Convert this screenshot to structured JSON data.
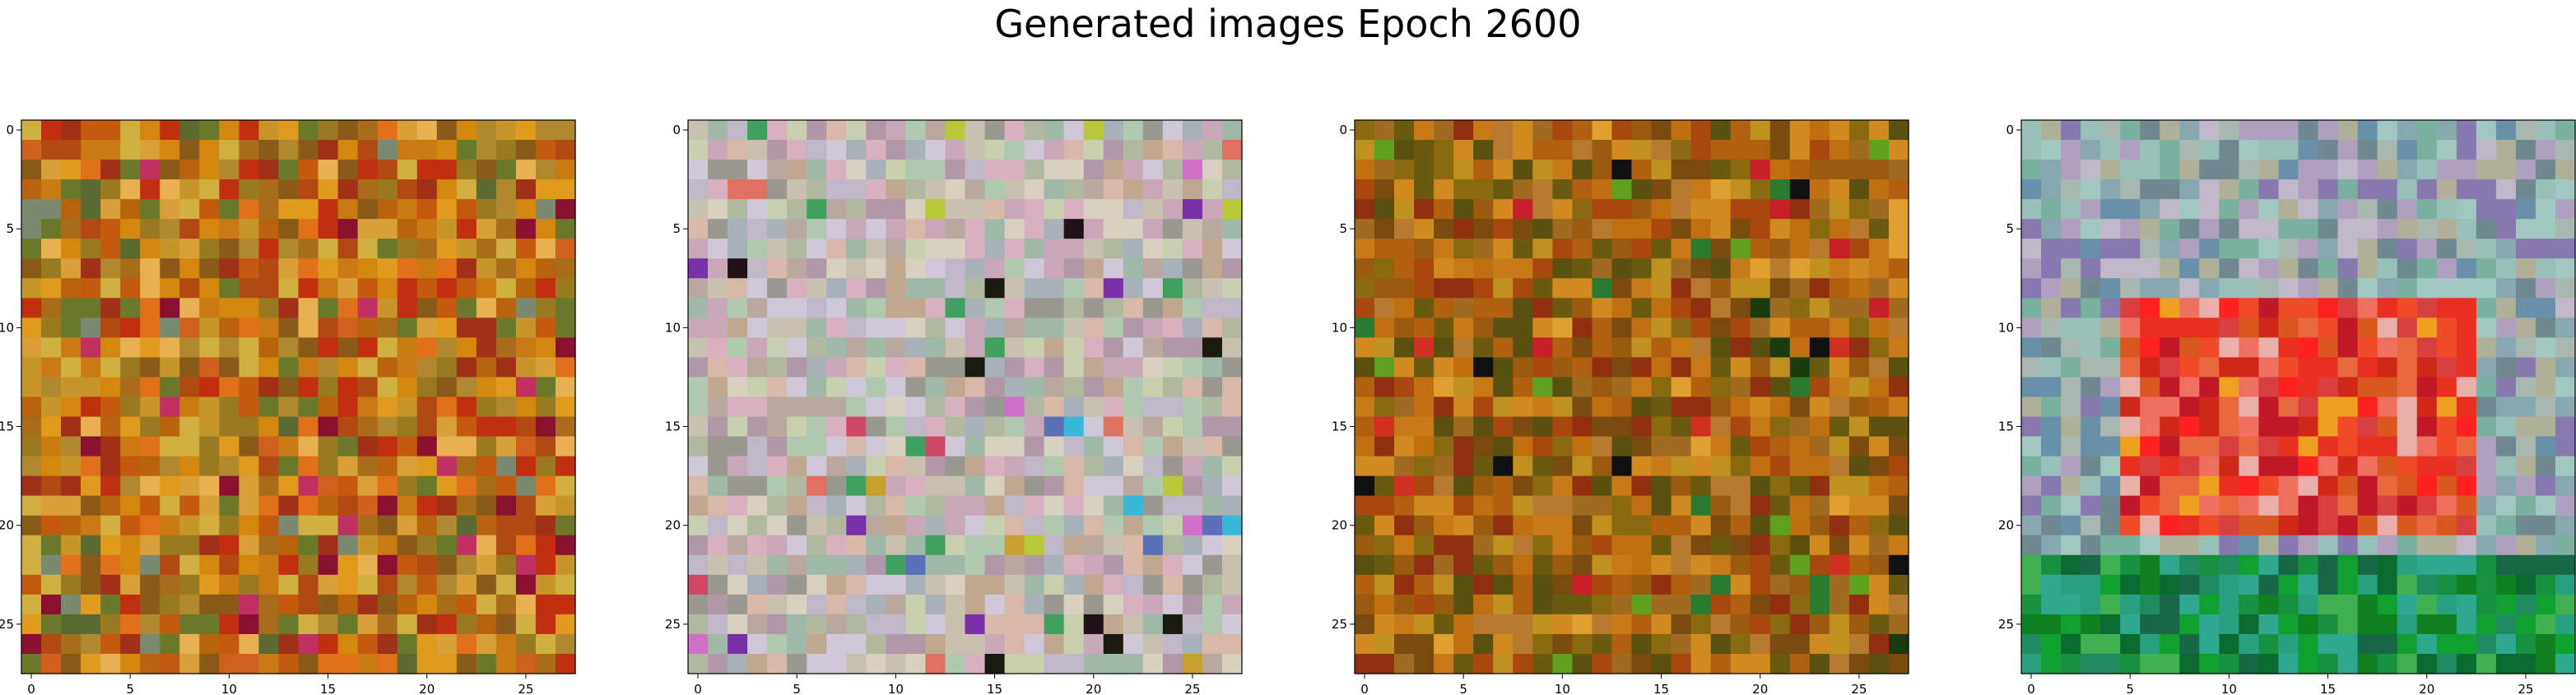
{
  "title": "Generated images Epoch 2600",
  "chart_data": [
    {
      "type": "heatmap",
      "title": "",
      "xlabel": "",
      "ylabel": "",
      "grid": false,
      "xlim": [
        -0.5,
        27.5
      ],
      "ylim": [
        27.5,
        -0.5
      ],
      "xticks": [
        0,
        5,
        10,
        15,
        20,
        25
      ],
      "yticks": [
        0,
        5,
        10,
        15,
        20,
        25
      ],
      "rows": 28,
      "cols": 28,
      "palette": [
        "#c97a12",
        "#d4870f",
        "#b8640e",
        "#e09a1e",
        "#c45a10",
        "#a86c1a",
        "#d9a03a",
        "#9a7a20",
        "#c8952a",
        "#e0701a",
        "#b04a12",
        "#8a5a18",
        "#d0b040",
        "#c03010",
        "#a03018",
        "#e8b050",
        "#6a7a2a",
        "#b08830"
      ],
      "palette_accent": [
        "#8a1030",
        "#c03060",
        "#7a8a70",
        "#d06020",
        "#5a6a30"
      ]
    },
    {
      "type": "heatmap",
      "title": "",
      "xlabel": "",
      "ylabel": "",
      "grid": false,
      "xlim": [
        -0.5,
        27.5
      ],
      "ylim": [
        27.5,
        -0.5
      ],
      "xticks": [
        0,
        5,
        10,
        15,
        20,
        25
      ],
      "yticks": [
        0,
        5,
        10,
        15,
        20,
        25
      ],
      "rows": 28,
      "cols": 28,
      "palette": [
        "#c8c0b0",
        "#d8b0c0",
        "#b0b8a0",
        "#c0a890",
        "#d0c8d8",
        "#a8b0b8",
        "#c8a8b8",
        "#b0c8b0",
        "#d8d0c0",
        "#9a9890",
        "#c0b8c8",
        "#b8a8a0",
        "#a0b8a8",
        "#d8b8a8",
        "#c8d0b0",
        "#b098a8"
      ],
      "palette_accent": [
        "#3ab8d8",
        "#d070c8",
        "#7a30a8",
        "#1a1a10",
        "#d04868",
        "#40a060",
        "#b8c838",
        "#c8a030",
        "#e07060",
        "#5a70b8",
        "#201018"
      ]
    },
    {
      "type": "heatmap",
      "title": "",
      "xlabel": "",
      "ylabel": "",
      "grid": false,
      "xlim": [
        -0.5,
        27.5
      ],
      "ylim": [
        27.5,
        -0.5
      ],
      "xticks": [
        0,
        5,
        10,
        15,
        20,
        25
      ],
      "yticks": [
        0,
        5,
        10,
        15,
        20,
        25
      ],
      "rows": 28,
      "cols": 28,
      "palette": [
        "#b06010",
        "#c87a18",
        "#9a5a10",
        "#a8480e",
        "#8a6a10",
        "#c09020",
        "#6a5a10",
        "#7a4a0e",
        "#b87a30",
        "#d08a20",
        "#903010",
        "#a06a20",
        "#5a5010",
        "#c07010"
      ],
      "palette_accent": [
        "#101010",
        "#2a7a30",
        "#d03020",
        "#60a020",
        "#c82028",
        "#1a3a10",
        "#e0a030"
      ]
    },
    {
      "type": "heatmap",
      "title": "",
      "xlabel": "",
      "ylabel": "",
      "grid": false,
      "xlim": [
        -0.5,
        27.5
      ],
      "ylim": [
        27.5,
        -0.5
      ],
      "xticks": [
        0,
        5,
        10,
        15,
        20,
        25
      ],
      "yticks": [
        0,
        5,
        10,
        15,
        20,
        25
      ],
      "rows": 28,
      "cols": 28,
      "palette": [
        "#88a8b0",
        "#b0a0c0",
        "#7ab0a0",
        "#a8b8b0",
        "#c0b8c8",
        "#6890a8",
        "#98c0b8",
        "#b0b098",
        "#8878b0",
        "#a0c8c0",
        "#708890"
      ],
      "palette_center": [
        "#e83020",
        "#f04a28",
        "#d02818",
        "#e86840",
        "#f07060",
        "#d84040",
        "#f0a020",
        "#e8b0a8",
        "#c01828",
        "#d85820",
        "#ff2020"
      ],
      "palette_bottom": [
        "#10a030",
        "#189040",
        "#208a60",
        "#2aa080",
        "#108020",
        "#40b050",
        "#0a6a30",
        "#30a890",
        "#186848"
      ]
    }
  ]
}
